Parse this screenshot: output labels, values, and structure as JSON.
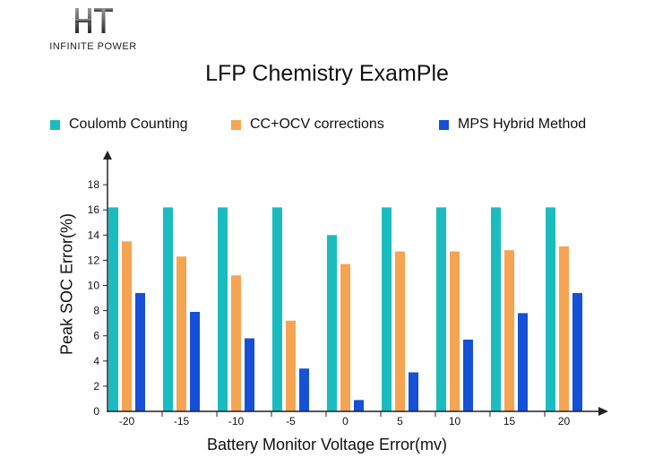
{
  "logo": {
    "mark": "HT",
    "subtitle": "INFINITE POWER"
  },
  "colors": {
    "coulomb": "#1bbcc0",
    "ccocv": "#f5a452",
    "mps": "#1550d6",
    "axis": "#222222"
  },
  "chart_data": {
    "type": "bar",
    "title": "LFP Chemistry ExamPle",
    "xlabel": "Battery Monitor Voltage Error(mv)",
    "ylabel": "Peak SOC Error(%)",
    "categories": [
      "-20",
      "-15",
      "-10",
      "-5",
      "0",
      "5",
      "10",
      "15",
      "20"
    ],
    "series": [
      {
        "name": "Coulomb Counting",
        "color": "#1bbcc0",
        "values": [
          16.2,
          16.2,
          16.2,
          16.2,
          14.0,
          16.2,
          16.2,
          16.2,
          16.2
        ]
      },
      {
        "name": "CC+OCV corrections",
        "color": "#f5a452",
        "values": [
          13.5,
          12.3,
          10.8,
          7.2,
          11.7,
          12.7,
          12.7,
          12.8,
          13.1
        ]
      },
      {
        "name": "MPS Hybrid Method",
        "color": "#1550d6",
        "values": [
          9.4,
          7.9,
          5.8,
          3.4,
          0.9,
          3.1,
          5.7,
          7.8,
          9.4
        ]
      }
    ],
    "ylim": [
      0,
      18
    ],
    "yticks": [
      "0",
      "2",
      "4",
      "6",
      "8",
      "10",
      "12",
      "14",
      "16",
      "18"
    ],
    "legend": "top",
    "grid": false
  }
}
